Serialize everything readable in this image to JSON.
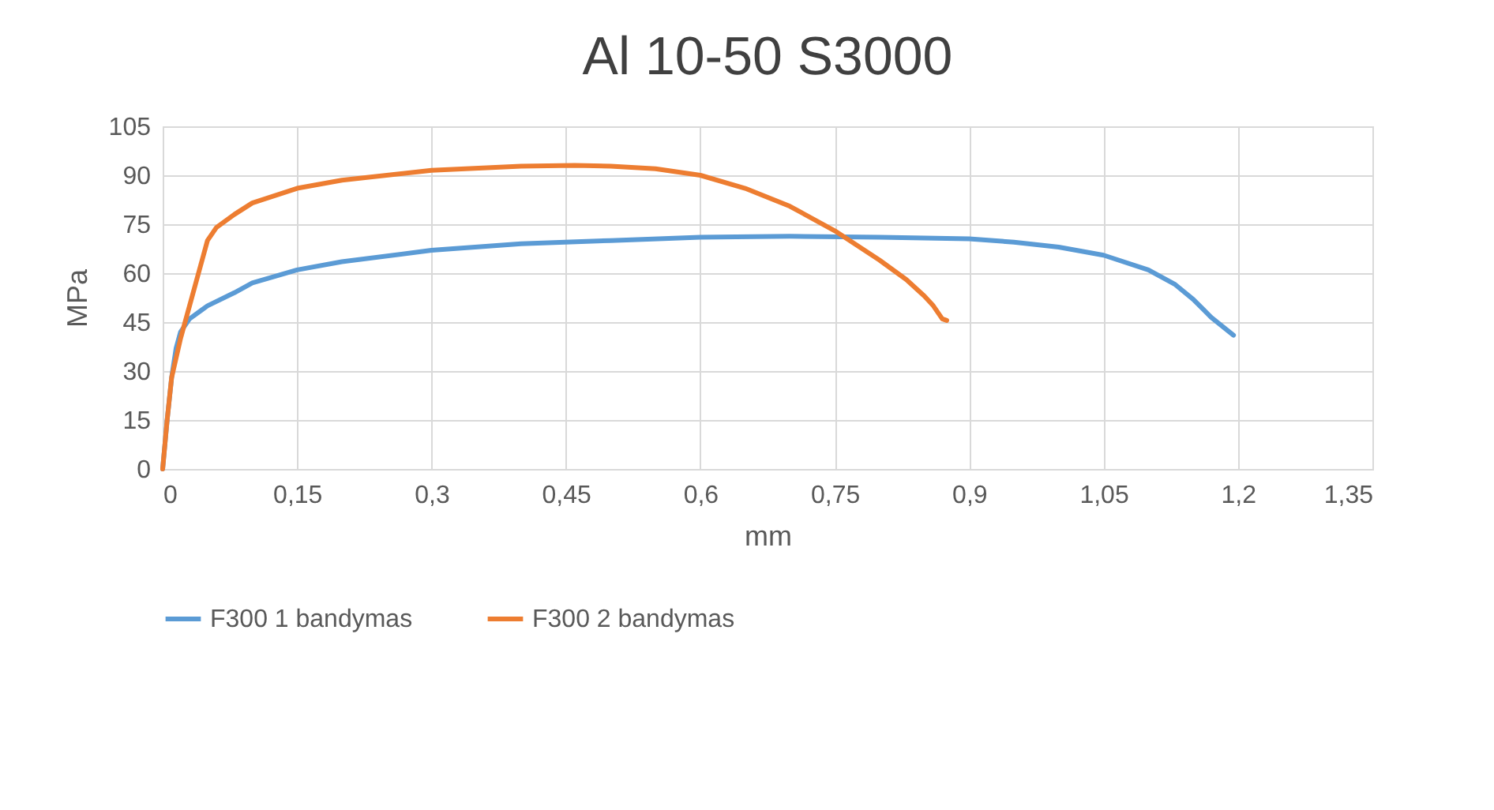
{
  "chart_data": {
    "type": "line",
    "title": "Al 10-50 S3000",
    "xlabel": "mm",
    "ylabel": "MPa",
    "xlim": [
      0,
      1.35
    ],
    "xticks": [
      0,
      {
        "value": 0.15,
        "label": "0,15"
      },
      {
        "value": 0.3,
        "label": "0,3"
      },
      {
        "value": 0.45,
        "label": "0,45"
      },
      {
        "value": 0.6,
        "label": "0,6"
      },
      {
        "value": 0.75,
        "label": "0,75"
      },
      {
        "value": 0.9,
        "label": "0,9"
      },
      {
        "value": 1.05,
        "label": "1,05"
      },
      {
        "value": 1.2,
        "label": "1,2"
      },
      {
        "value": 1.35,
        "label": "1,35"
      }
    ],
    "ylim": [
      0,
      105
    ],
    "yticks": [
      0,
      15,
      30,
      45,
      60,
      75,
      90,
      105
    ],
    "grid": true,
    "legend": "bottom",
    "marker": "none",
    "line_style": "solid",
    "series": [
      {
        "name": "F300 1 bandymas",
        "color": "#5b9bd5",
        "x": [
          0,
          0.005,
          0.01,
          0.015,
          0.02,
          0.03,
          0.05,
          0.08,
          0.1,
          0.15,
          0.2,
          0.3,
          0.4,
          0.5,
          0.6,
          0.7,
          0.8,
          0.9,
          0.95,
          1.0,
          1.05,
          1.1,
          1.13,
          1.15,
          1.17,
          1.195
        ],
        "values": [
          0,
          15,
          28,
          37,
          42,
          46,
          50,
          54,
          57,
          61,
          63.5,
          67,
          69,
          70,
          71,
          71.3,
          71,
          70.5,
          69.5,
          68,
          65.5,
          61,
          56.5,
          52,
          46.5,
          41
        ]
      },
      {
        "name": "F300 2 bandymas",
        "color": "#ed7d31",
        "x": [
          0,
          0.005,
          0.01,
          0.02,
          0.03,
          0.04,
          0.05,
          0.06,
          0.08,
          0.1,
          0.15,
          0.2,
          0.3,
          0.4,
          0.46,
          0.5,
          0.55,
          0.6,
          0.65,
          0.7,
          0.75,
          0.8,
          0.83,
          0.85,
          0.86,
          0.87,
          0.875
        ],
        "values": [
          0,
          15,
          28,
          40,
          50,
          60,
          70,
          74,
          78,
          81.5,
          86,
          88.5,
          91.5,
          92.8,
          93,
          92.8,
          92,
          90,
          86,
          80.5,
          73,
          64,
          58,
          53,
          50,
          46,
          45.5
        ]
      }
    ]
  }
}
